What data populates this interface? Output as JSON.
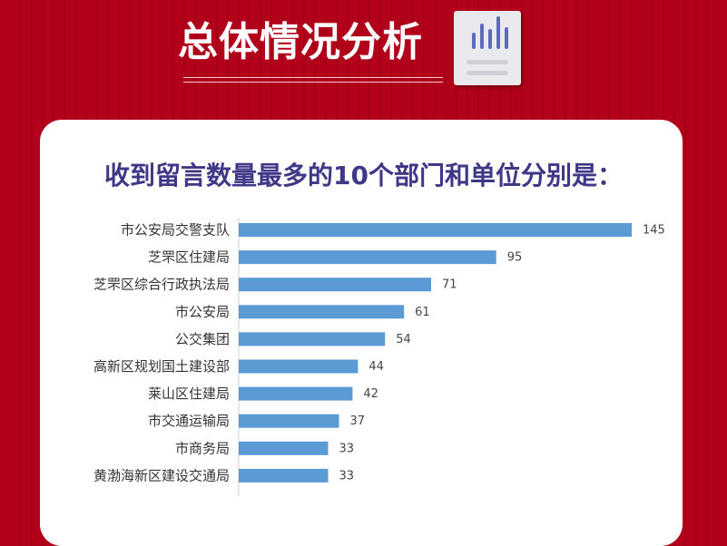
{
  "header": {
    "title": "总体情况分析",
    "icon": "bar-chart-document-icon"
  },
  "colors": {
    "background": "#b3001b",
    "title_text": "#3f3887",
    "bar": "#5b9bd5",
    "icon_bars": "#5c6bc0"
  },
  "chart_data": {
    "type": "bar",
    "orientation": "horizontal",
    "title": "收到留言数量最多的10个部门和单位分别是：",
    "categories": [
      "市公安局交警支队",
      "芝罘区住建局",
      "芝罘区综合行政执法局",
      "市公安局",
      "公交集团",
      "高新区规划国土建设部",
      "莱山区住建局",
      "市交通运输局",
      "市商务局",
      "黄渤海新区建设交通局"
    ],
    "values": [
      145,
      95,
      71,
      61,
      54,
      44,
      42,
      37,
      33,
      33
    ],
    "xlim": [
      0,
      145
    ],
    "data_labels": true,
    "grid": false,
    "legend": "none"
  }
}
